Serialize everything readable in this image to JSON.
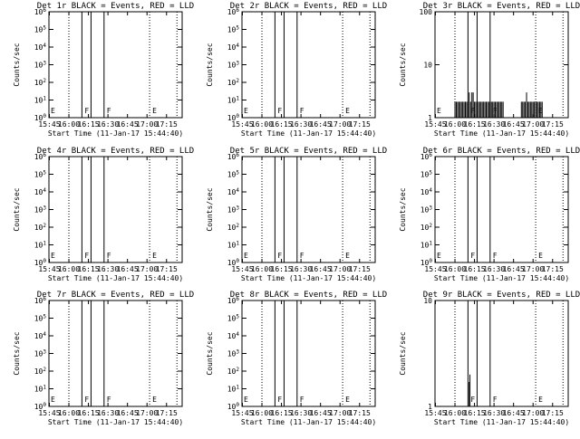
{
  "chart_data": [
    {
      "type": "line",
      "title": "Det 1r BLACK = Events, RED = LLD",
      "xlabel": "Start Time (11-Jan-17 15:44:40)",
      "ylabel": "Counts/sec",
      "x_ticks": [
        "15:45",
        "16:00",
        "16:15",
        "16:30",
        "16:45",
        "17:00",
        "17:15"
      ],
      "y_scale": "log",
      "y_ticks": [
        "10^0",
        "10^1",
        "10^2",
        "10^3",
        "10^4",
        "10^5",
        "10^6"
      ],
      "ylim": [
        1,
        1000000
      ],
      "event_lines": [
        {
          "time": "16:00",
          "style": "dotted",
          "label": ""
        },
        {
          "time": "16:10",
          "style": "solid",
          "label": "F"
        },
        {
          "time": "16:17",
          "style": "solid",
          "label": ""
        },
        {
          "time": "16:27",
          "style": "solid",
          "label": "F"
        },
        {
          "time": "17:02",
          "style": "dotted",
          "label": "E"
        },
        {
          "time": "17:23",
          "style": "dotted",
          "label": ""
        }
      ],
      "left_label": "E",
      "series": []
    },
    {
      "type": "line",
      "title": "Det 2r BLACK = Events, RED = LLD",
      "xlabel": "Start Time (11-Jan-17 15:44:40)",
      "ylabel": "Counts/sec",
      "x_ticks": [
        "15:45",
        "16:00",
        "16:15",
        "16:30",
        "16:45",
        "17:00",
        "17:15"
      ],
      "y_scale": "log",
      "y_ticks": [
        "10^0",
        "10^1",
        "10^2",
        "10^3",
        "10^4",
        "10^5",
        "10^6"
      ],
      "ylim": [
        1,
        1000000
      ],
      "event_lines": [
        {
          "time": "16:00",
          "style": "dotted",
          "label": ""
        },
        {
          "time": "16:10",
          "style": "solid",
          "label": "F"
        },
        {
          "time": "16:17",
          "style": "solid",
          "label": ""
        },
        {
          "time": "16:27",
          "style": "solid",
          "label": "F"
        },
        {
          "time": "17:02",
          "style": "dotted",
          "label": "E"
        },
        {
          "time": "17:23",
          "style": "dotted",
          "label": ""
        }
      ],
      "left_label": "E",
      "series": []
    },
    {
      "type": "line",
      "title": "Det 3r BLACK = Events, RED = LLD",
      "xlabel": "Start Time (11-Jan-17 15:44:40)",
      "ylabel": "Counts/sec",
      "x_ticks": [
        "15:45",
        "16:00",
        "16:15",
        "16:30",
        "16:45",
        "17:00",
        "17:15"
      ],
      "y_scale": "log",
      "y_ticks": [
        "1",
        "10",
        "100"
      ],
      "ylim": [
        1,
        100
      ],
      "event_lines": [
        {
          "time": "16:00",
          "style": "dotted",
          "label": ""
        },
        {
          "time": "16:10",
          "style": "solid",
          "label": "F"
        },
        {
          "time": "16:17",
          "style": "solid",
          "label": ""
        },
        {
          "time": "16:27",
          "style": "solid",
          "label": "F"
        },
        {
          "time": "17:02",
          "style": "dotted",
          "label": "E"
        },
        {
          "time": "17:23",
          "style": "dotted",
          "label": ""
        }
      ],
      "left_label": "E",
      "series": [
        {
          "style": "spikes",
          "points": [
            [
              "16:00",
              2
            ],
            [
              "16:01",
              2
            ],
            [
              "16:02",
              2
            ],
            [
              "16:03",
              2
            ],
            [
              "16:04",
              2
            ],
            [
              "16:05",
              2
            ],
            [
              "16:06",
              2
            ],
            [
              "16:07",
              2
            ],
            [
              "16:08",
              2
            ],
            [
              "16:09",
              2
            ],
            [
              "16:10",
              2
            ],
            [
              "16:11",
              3
            ],
            [
              "16:12",
              2
            ],
            [
              "16:13",
              3
            ],
            [
              "16:14",
              3
            ],
            [
              "16:15",
              2
            ],
            [
              "16:16",
              2
            ],
            [
              "16:17",
              2
            ],
            [
              "16:18",
              2
            ],
            [
              "16:19",
              2
            ],
            [
              "16:20",
              2
            ],
            [
              "16:21",
              2
            ],
            [
              "16:22",
              2
            ],
            [
              "16:23",
              2
            ],
            [
              "16:24",
              2
            ],
            [
              "16:25",
              2
            ],
            [
              "16:26",
              2
            ],
            [
              "16:27",
              2
            ],
            [
              "16:28",
              2
            ],
            [
              "16:29",
              2
            ],
            [
              "16:30",
              2
            ],
            [
              "16:31",
              2
            ],
            [
              "16:32",
              2
            ],
            [
              "16:33",
              2
            ],
            [
              "16:34",
              2
            ],
            [
              "16:35",
              2
            ],
            [
              "16:36",
              2
            ],
            [
              "16:37",
              2
            ],
            [
              "16:51",
              2
            ],
            [
              "16:52",
              2
            ],
            [
              "16:53",
              2
            ],
            [
              "16:54",
              2
            ],
            [
              "16:55",
              3
            ],
            [
              "16:56",
              2
            ],
            [
              "16:57",
              2
            ],
            [
              "16:58",
              2
            ],
            [
              "16:59",
              2
            ],
            [
              "17:00",
              2
            ],
            [
              "17:01",
              2
            ],
            [
              "17:02",
              2
            ],
            [
              "17:03",
              2
            ],
            [
              "17:04",
              2
            ],
            [
              "17:05",
              2
            ],
            [
              "17:06",
              2
            ],
            [
              "17:07",
              2
            ]
          ]
        }
      ]
    },
    {
      "type": "line",
      "title": "Det 4r BLACK = Events, RED = LLD",
      "xlabel": "Start Time (11-Jan-17 15:44:40)",
      "ylabel": "Counts/sec",
      "x_ticks": [
        "15:45",
        "16:00",
        "16:15",
        "16:30",
        "16:45",
        "17:00",
        "17:15"
      ],
      "y_scale": "log",
      "y_ticks": [
        "10^0",
        "10^1",
        "10^2",
        "10^3",
        "10^4",
        "10^5",
        "10^6"
      ],
      "ylim": [
        1,
        1000000
      ],
      "event_lines": [
        {
          "time": "16:00",
          "style": "dotted",
          "label": ""
        },
        {
          "time": "16:10",
          "style": "solid",
          "label": "F"
        },
        {
          "time": "16:17",
          "style": "solid",
          "label": ""
        },
        {
          "time": "16:27",
          "style": "solid",
          "label": "F"
        },
        {
          "time": "17:02",
          "style": "dotted",
          "label": "E"
        },
        {
          "time": "17:23",
          "style": "dotted",
          "label": ""
        }
      ],
      "left_label": "E",
      "series": []
    },
    {
      "type": "line",
      "title": "Det 5r BLACK = Events, RED = LLD",
      "xlabel": "Start Time (11-Jan-17 15:44:40)",
      "ylabel": "Counts/sec",
      "x_ticks": [
        "15:45",
        "16:00",
        "16:15",
        "16:30",
        "16:45",
        "17:00",
        "17:15"
      ],
      "y_scale": "log",
      "y_ticks": [
        "10^0",
        "10^1",
        "10^2",
        "10^3",
        "10^4",
        "10^5",
        "10^6"
      ],
      "ylim": [
        1,
        1000000
      ],
      "event_lines": [
        {
          "time": "16:00",
          "style": "dotted",
          "label": ""
        },
        {
          "time": "16:10",
          "style": "solid",
          "label": "F"
        },
        {
          "time": "16:17",
          "style": "solid",
          "label": ""
        },
        {
          "time": "16:27",
          "style": "solid",
          "label": "F"
        },
        {
          "time": "17:02",
          "style": "dotted",
          "label": "E"
        },
        {
          "time": "17:23",
          "style": "dotted",
          "label": ""
        }
      ],
      "left_label": "E",
      "series": []
    },
    {
      "type": "line",
      "title": "Det 6r BLACK = Events, RED = LLD",
      "xlabel": "Start Time (11-Jan-17 15:44:40)",
      "ylabel": "Counts/sec",
      "x_ticks": [
        "15:45",
        "16:00",
        "16:15",
        "16:30",
        "16:45",
        "17:00",
        "17:15"
      ],
      "y_scale": "log",
      "y_ticks": [
        "10^0",
        "10^1",
        "10^2",
        "10^3",
        "10^4",
        "10^5",
        "10^6"
      ],
      "ylim": [
        1,
        1000000
      ],
      "event_lines": [
        {
          "time": "16:00",
          "style": "dotted",
          "label": ""
        },
        {
          "time": "16:10",
          "style": "solid",
          "label": "F"
        },
        {
          "time": "16:17",
          "style": "solid",
          "label": ""
        },
        {
          "time": "16:27",
          "style": "solid",
          "label": "F"
        },
        {
          "time": "17:02",
          "style": "dotted",
          "label": "E"
        },
        {
          "time": "17:23",
          "style": "dotted",
          "label": ""
        }
      ],
      "left_label": "E",
      "series": []
    },
    {
      "type": "line",
      "title": "Det 7r BLACK = Events, RED = LLD",
      "xlabel": "Start Time (11-Jan-17 15:44:40)",
      "ylabel": "Counts/sec",
      "x_ticks": [
        "15:45",
        "16:00",
        "16:15",
        "16:30",
        "16:45",
        "17:00",
        "17:15"
      ],
      "y_scale": "log",
      "y_ticks": [
        "10^0",
        "10^1",
        "10^2",
        "10^3",
        "10^4",
        "10^5",
        "10^6"
      ],
      "ylim": [
        1,
        1000000
      ],
      "event_lines": [
        {
          "time": "16:00",
          "style": "dotted",
          "label": ""
        },
        {
          "time": "16:10",
          "style": "solid",
          "label": "F"
        },
        {
          "time": "16:17",
          "style": "solid",
          "label": ""
        },
        {
          "time": "16:27",
          "style": "solid",
          "label": "F"
        },
        {
          "time": "17:02",
          "style": "dotted",
          "label": "E"
        },
        {
          "time": "17:23",
          "style": "dotted",
          "label": ""
        }
      ],
      "left_label": "E",
      "series": []
    },
    {
      "type": "line",
      "title": "Det 8r BLACK = Events, RED = LLD",
      "xlabel": "Start Time (11-Jan-17 15:44:40)",
      "ylabel": "Counts/sec",
      "x_ticks": [
        "15:45",
        "16:00",
        "16:15",
        "16:30",
        "16:45",
        "17:00",
        "17:15"
      ],
      "y_scale": "log",
      "y_ticks": [
        "10^0",
        "10^1",
        "10^2",
        "10^3",
        "10^4",
        "10^5",
        "10^6"
      ],
      "ylim": [
        1,
        1000000
      ],
      "event_lines": [
        {
          "time": "16:00",
          "style": "dotted",
          "label": ""
        },
        {
          "time": "16:10",
          "style": "solid",
          "label": "F"
        },
        {
          "time": "16:17",
          "style": "solid",
          "label": ""
        },
        {
          "time": "16:27",
          "style": "solid",
          "label": "F"
        },
        {
          "time": "17:02",
          "style": "dotted",
          "label": "E"
        },
        {
          "time": "17:23",
          "style": "dotted",
          "label": ""
        }
      ],
      "left_label": "E",
      "series": []
    },
    {
      "type": "line",
      "title": "Det 9r BLACK = Events, RED = LLD",
      "xlabel": "Start Time (11-Jan-17 15:44:40)",
      "ylabel": "Counts/sec",
      "x_ticks": [
        "15:45",
        "16:00",
        "16:15",
        "16:30",
        "16:45",
        "17:00",
        "17:15"
      ],
      "y_scale": "log",
      "y_ticks": [
        "1",
        "10"
      ],
      "ylim": [
        1,
        10
      ],
      "event_lines": [
        {
          "time": "16:00",
          "style": "dotted",
          "label": ""
        },
        {
          "time": "16:10",
          "style": "solid",
          "label": "F"
        },
        {
          "time": "16:17",
          "style": "solid",
          "label": ""
        },
        {
          "time": "16:27",
          "style": "solid",
          "label": "F"
        },
        {
          "time": "17:02",
          "style": "dotted",
          "label": "E"
        },
        {
          "time": "17:23",
          "style": "dotted",
          "label": ""
        }
      ],
      "left_label": "",
      "series": [
        {
          "style": "spikes",
          "points": [
            [
              "16:11",
              1.7
            ],
            [
              "16:11:30",
              2
            ]
          ]
        }
      ]
    }
  ]
}
